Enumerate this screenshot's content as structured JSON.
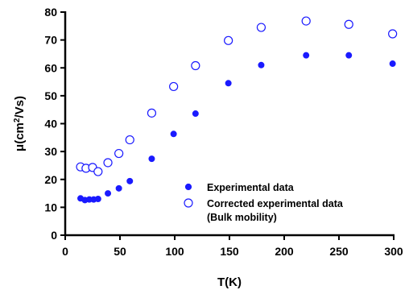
{
  "chart_data": {
    "type": "scatter",
    "title": "",
    "xlabel": "T(K)",
    "ylabel_prefix": "μ(cm",
    "ylabel_sup": "2",
    "ylabel_suffix": "/Vs)",
    "xlim": [
      0,
      300
    ],
    "ylim": [
      0,
      80
    ],
    "x_ticks": [
      0,
      50,
      100,
      150,
      200,
      250,
      300
    ],
    "y_ticks": [
      0,
      10,
      20,
      30,
      40,
      50,
      60,
      70,
      80
    ],
    "grid": false,
    "legend_position": "bottom-right",
    "series": [
      {
        "name": "Experimental data",
        "marker": "filled-circle",
        "color": "#1a1aff",
        "points": [
          {
            "x": 14,
            "y": 13.2
          },
          {
            "x": 18,
            "y": 12.6
          },
          {
            "x": 22,
            "y": 12.8
          },
          {
            "x": 26,
            "y": 12.8
          },
          {
            "x": 30,
            "y": 13.0
          },
          {
            "x": 39,
            "y": 15.0
          },
          {
            "x": 49,
            "y": 16.8
          },
          {
            "x": 59,
            "y": 19.4
          },
          {
            "x": 79,
            "y": 27.4
          },
          {
            "x": 99,
            "y": 36.3
          },
          {
            "x": 119,
            "y": 43.6
          },
          {
            "x": 149,
            "y": 54.5
          },
          {
            "x": 179,
            "y": 61.0
          },
          {
            "x": 220,
            "y": 64.5
          },
          {
            "x": 259,
            "y": 64.5
          },
          {
            "x": 299,
            "y": 61.5
          }
        ]
      },
      {
        "name": "Corrected experimental data",
        "name_line2": "(Bulk mobility)",
        "marker": "open-circle",
        "color": "#1a1aff",
        "points": [
          {
            "x": 14,
            "y": 24.5
          },
          {
            "x": 19,
            "y": 24.0
          },
          {
            "x": 25,
            "y": 24.3
          },
          {
            "x": 30,
            "y": 22.8
          },
          {
            "x": 39,
            "y": 26.0
          },
          {
            "x": 49,
            "y": 29.3
          },
          {
            "x": 59,
            "y": 34.2
          },
          {
            "x": 79,
            "y": 43.8
          },
          {
            "x": 99,
            "y": 53.3
          },
          {
            "x": 119,
            "y": 60.8
          },
          {
            "x": 149,
            "y": 69.8
          },
          {
            "x": 179,
            "y": 74.5
          },
          {
            "x": 220,
            "y": 76.8
          },
          {
            "x": 259,
            "y": 75.6
          },
          {
            "x": 299,
            "y": 72.2
          }
        ]
      }
    ]
  }
}
